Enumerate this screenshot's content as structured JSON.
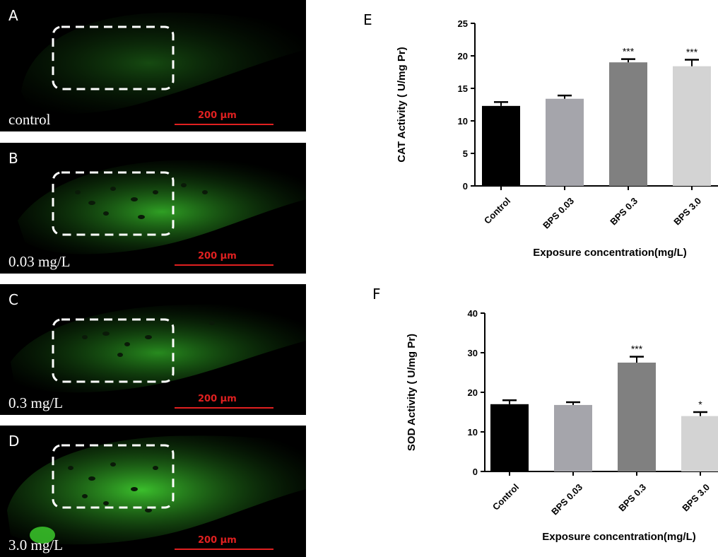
{
  "panels": [
    {
      "letter": "A",
      "condition": "control",
      "scale_label": "200 μm"
    },
    {
      "letter": "B",
      "condition": "0.03 mg/L",
      "scale_label": "200 μm"
    },
    {
      "letter": "C",
      "condition": "0.3 mg/L",
      "scale_label": "200 μm"
    },
    {
      "letter": "D",
      "condition": "3.0 mg/L",
      "scale_label": "200 μm"
    }
  ],
  "colors": {
    "fluorescence": "#2f9e25",
    "background": "#000000",
    "scale_bar": "#e02020",
    "bars": [
      "#000000",
      "#a5a5ab",
      "#808080",
      "#d3d3d3"
    ]
  },
  "chart_data": [
    {
      "panel": "E",
      "type": "bar",
      "categories": [
        "Control",
        "BPS 0.03",
        "BPS 0.3",
        "BPS 3.0"
      ],
      "values": [
        12.3,
        13.4,
        19.0,
        18.4
      ],
      "errors": [
        0.6,
        0.5,
        0.5,
        1.0
      ],
      "annotations": [
        "",
        "",
        "***",
        "***"
      ],
      "ylabel": "CAT Activity ( U/mg Pr)",
      "xlabel": "Exposure concentration(mg/L)",
      "ylim": [
        0,
        25
      ],
      "yticks": [
        0,
        5,
        10,
        15,
        20,
        25
      ],
      "grid": false
    },
    {
      "panel": "F",
      "type": "bar",
      "categories": [
        "Control",
        "BPS 0.03",
        "BPS 0.3",
        "BPS 3.0"
      ],
      "values": [
        17.0,
        16.8,
        27.5,
        14.0
      ],
      "errors": [
        1.0,
        0.7,
        1.5,
        1.0
      ],
      "annotations": [
        "",
        "",
        "***",
        "*"
      ],
      "ylabel": "SOD Activity ( U/mg Pr)",
      "xlabel": "Exposure concentration(mg/L)",
      "ylim": [
        0,
        40
      ],
      "yticks": [
        0,
        10,
        20,
        30,
        40
      ],
      "grid": false
    }
  ]
}
